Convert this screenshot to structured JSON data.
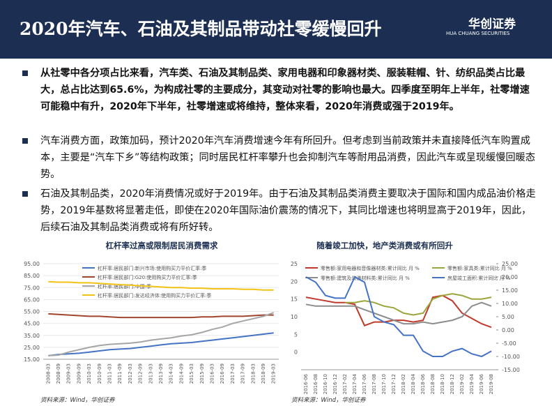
{
  "header": {
    "title": "2020年汽车、石油及其制品带动社零缓慢回升",
    "logo": "华创证券",
    "logo_sub": "HUA CHUANG SECURITIES"
  },
  "bullets": [
    {
      "text": "从社零中各分项占比来看，汽车类、石油及其制品类、家用电器和印象器材类、服装鞋帽、针、纺织品类占比最大，总占比达到65.6%，为构成社零的主要成分，其变动对社零的影响也最大。四季度至明年上半年，社零增速可能稳中有升，2020年下半年，社零增速或将维持，整体来看，2020年消费或强于2019年。",
      "bold": true
    },
    {
      "text": "汽车消费方面，政策加码，预计2020年汽车消费增速今年有所回升。但考虑到当前政策并未直接降低汽车购置成本，主要是“汽车下乡”等结构政策；同时居民杠杆率攀升也会抑制汽车等耐用品消费，因此汽车或呈现缓慢回暖态势。",
      "bold": false
    },
    {
      "text": "石油及其制品类，2020年消费情况或好于2019年。由于石油及其制品类消费主要取决于国际和国内成品油价格走势，2019年基数将显著走低，即使在2020年国际油价震荡的情况下，其同比增速也将明显高于2019年，因此，后续石油及其制品类消费或将有所好转。",
      "bold": false
    }
  ],
  "chart_data": [
    {
      "type": "line",
      "title": "杠杆率过高或限制居民消费需求",
      "source": "资料来源：Wind，华创证券",
      "categories": [
        "2008-03",
        "2008-09",
        "2009-03",
        "2009-09",
        "2010-03",
        "2010-09",
        "2011-03",
        "2011-09",
        "2012-03",
        "2012-09",
        "2013-03",
        "2013-09",
        "2014-03",
        "2014-09",
        "2015-03",
        "2015-09",
        "2016-03",
        "2016-09",
        "2017-03",
        "2017-09",
        "2018-03",
        "2018-09",
        "2019-03"
      ],
      "ylim": [
        15,
        95
      ],
      "yticks": [
        {
          "value": 15,
          "label": "15.00"
        },
        {
          "value": 25,
          "label": "25.00"
        },
        {
          "value": 35,
          "label": "35.00"
        },
        {
          "value": 45,
          "label": "45.00"
        },
        {
          "value": 55,
          "label": "55.00"
        },
        {
          "value": 65,
          "label": "65.00"
        },
        {
          "value": 75,
          "label": "75.00"
        },
        {
          "value": 85,
          "label": "85.00"
        },
        {
          "value": 95,
          "label": "95.00"
        }
      ],
      "series": [
        {
          "name": "杠杆率:居民部门:新兴市场:使用购买力平价汇率:季",
          "color": "#4472c4",
          "values": [
            18,
            19,
            19.5,
            20,
            21,
            22,
            23,
            23.5,
            24,
            25,
            26,
            27,
            28,
            28.5,
            29,
            30,
            31,
            32,
            33,
            34,
            35,
            36,
            37
          ]
        },
        {
          "name": "杠杆率:居民部门:G20:使用购买力平价汇率:季",
          "color": "#a0452e",
          "values": [
            53,
            52.5,
            52,
            51.5,
            51,
            51,
            50.5,
            50,
            50,
            50,
            50,
            50,
            50,
            50,
            50,
            50.5,
            50.5,
            51,
            51,
            51,
            51.5,
            52,
            52
          ]
        },
        {
          "name": "杠杆率:居民部门:中国:季",
          "color": "#a5a5a5",
          "values": [
            18,
            18.5,
            21,
            23,
            25,
            26.5,
            27.5,
            28,
            28.5,
            29.5,
            31,
            32,
            33,
            34.5,
            35.5,
            37.5,
            40,
            42,
            45,
            47,
            49,
            51,
            54
          ]
        },
        {
          "name": "杠杆率:居民部门:发达经济体:使用购买力平价汇率:季",
          "color": "#f2c314",
          "values": [
            80,
            79.5,
            79.5,
            79,
            79,
            78.5,
            78,
            77.5,
            77,
            76.5,
            76,
            75.5,
            75,
            75,
            74.5,
            74.5,
            74,
            74,
            74,
            73.5,
            73.5,
            73,
            73
          ]
        }
      ]
    },
    {
      "type": "line",
      "title": "随着竣工加快，地产类消费或有所回升",
      "source": "资料来源：Wind，华创证券",
      "categories": [
        "2016-06",
        "2016-08",
        "2016-10",
        "2016-12",
        "2017-02",
        "2017-04",
        "2017-06",
        "2017-08",
        "2017-10",
        "2017-12",
        "2018-02",
        "2018-04",
        "2018-06",
        "2018-08",
        "2018-10",
        "2018-12",
        "2019-02",
        "2019-04",
        "2019-06",
        "2019-08"
      ],
      "ylim": [
        -5,
        25
      ],
      "yticks": [
        0,
        5,
        10,
        15,
        20,
        25
      ],
      "y2lim": [
        -15,
        25
      ],
      "y2ticks": [
        {
          "value": -15,
          "label": "-15.00"
        },
        {
          "value": -10,
          "label": "-10.00"
        },
        {
          "value": -5,
          "label": "-5.00"
        },
        {
          "value": 0,
          "label": "0.00"
        },
        {
          "value": 5,
          "label": "5.00"
        },
        {
          "value": 10,
          "label": "10.00"
        },
        {
          "value": 15,
          "label": "15.00"
        },
        {
          "value": 20,
          "label": "20.00"
        },
        {
          "value": 25,
          "label": "25.00"
        }
      ],
      "series": [
        {
          "name": "零售额:家用电器和音像器材类:累计同比 月 %",
          "color": "#c0392b",
          "values": [
            15.5,
            15,
            14.5,
            14,
            14,
            13.5,
            7.5,
            8.5,
            8.5,
            9,
            9,
            8.5,
            9,
            15.5,
            16,
            14.5,
            11,
            9.5,
            8,
            7
          ]
        },
        {
          "name": "零售额:家具类:累计同比 月 %",
          "color": "#9aa53a",
          "values": [
            null,
            null,
            null,
            null,
            14,
            14,
            14.5,
            14,
            13,
            12.5,
            11,
            10.5,
            11,
            15,
            16,
            16.5,
            16,
            15,
            15,
            15.5
          ]
        },
        {
          "name": "零售额:建筑及装潢材料类:累计同比 月 %",
          "color": "#8c8c8c",
          "values": [
            13.5,
            13,
            13,
            13,
            13,
            13,
            12,
            11,
            10,
            9,
            8,
            8,
            8.5,
            8,
            8.5,
            9,
            10,
            13,
            14,
            13
          ]
        },
        {
          "name": "房屋竣工面积:累计同比 月 %",
          "color": "#4472c4",
          "axis": "y2",
          "values": [
            20,
            18,
            13,
            12,
            12,
            20,
            18,
            5,
            3,
            2,
            -2,
            -2,
            -8,
            -10,
            -10,
            -8,
            -7,
            -9,
            -10,
            -8
          ]
        }
      ]
    }
  ]
}
